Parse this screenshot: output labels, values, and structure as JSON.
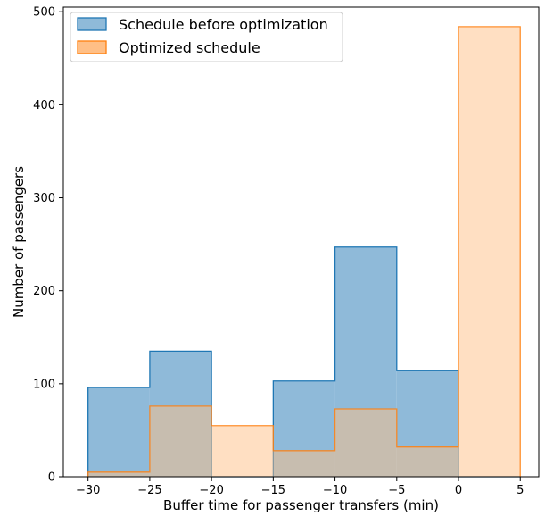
{
  "chart_data": {
    "type": "histogram",
    "xlabel": "Buffer time for passenger transfers (min)",
    "ylabel": "Number of passengers",
    "xlim": [
      -32,
      6.5
    ],
    "ylim": [
      0,
      505
    ],
    "x_ticks": [
      -30,
      -25,
      -20,
      -15,
      -10,
      -5,
      0,
      5
    ],
    "y_ticks": [
      0,
      100,
      200,
      300,
      400,
      500
    ],
    "bin_edges": [
      -30,
      -25,
      -20,
      -15,
      -10,
      -5,
      0,
      5
    ],
    "legend_position": "upper-left",
    "grid": false,
    "series": [
      {
        "name": "Schedule before optimization",
        "values": [
          96,
          135,
          0,
          103,
          247,
          114,
          0
        ],
        "fill": "#8fbad9",
        "stroke": "#1f77b4"
      },
      {
        "name": "Optimized schedule",
        "values": [
          5,
          76,
          55,
          28,
          73,
          32,
          484
        ],
        "fill": "#ffbf86",
        "stroke": "#ff7f0e",
        "opacity": 0.5
      }
    ]
  }
}
